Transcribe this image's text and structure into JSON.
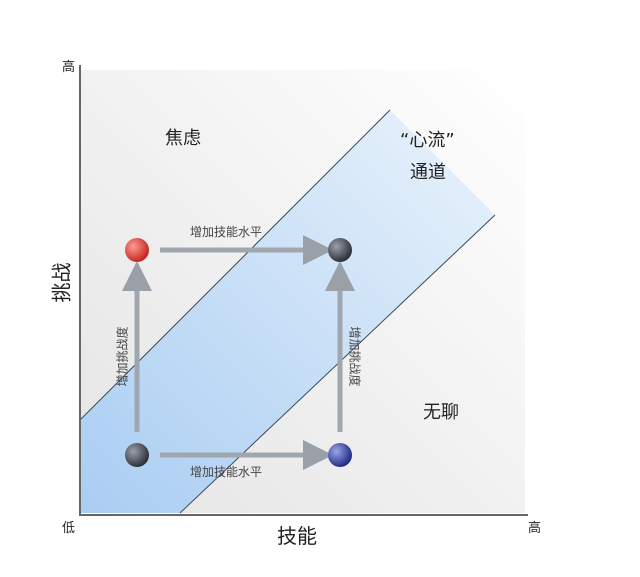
{
  "axes": {
    "y_high": "高",
    "y_low": "低",
    "x_high": "高",
    "y_label": "挑战",
    "x_label": "技能"
  },
  "regions": {
    "anxiety": "焦虑",
    "flow_line1": "“心流”",
    "flow_line2": "通道",
    "boredom": "无聊"
  },
  "arrows": {
    "top": "增加技能水平",
    "bottom": "增加技能水平",
    "left": "增加挑战度",
    "right": "增加挑战度"
  },
  "colors": {
    "band": "#bcd8f4",
    "red_ball": "#e0302a",
    "dark_ball": "#3a3f4a",
    "blue_ball": "#2a3aa0"
  }
}
